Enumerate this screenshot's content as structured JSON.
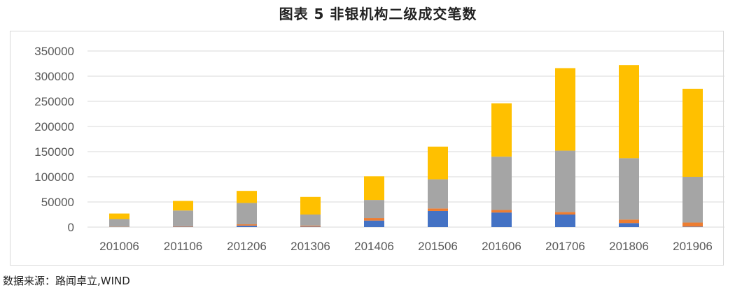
{
  "title": "图表 5 非银机构二级成交笔数",
  "source": "数据来源：路闻卓立,WIND",
  "chart_data": {
    "type": "bar",
    "stacked": true,
    "categories": [
      "201006",
      "201106",
      "201206",
      "201306",
      "201406",
      "201506",
      "201606",
      "201706",
      "201806",
      "201906"
    ],
    "series": [
      {
        "name": "",
        "color": "#4472c4",
        "values": [
          300,
          600,
          3000,
          1000,
          13000,
          32000,
          29000,
          25000,
          8000,
          1000
        ]
      },
      {
        "name": "",
        "color": "#ed7d31",
        "values": [
          500,
          1000,
          2500,
          2000,
          5000,
          5000,
          5000,
          5000,
          7000,
          8000
        ]
      },
      {
        "name": "",
        "color": "#a5a5a5",
        "values": [
          15200,
          31400,
          42500,
          22000,
          36000,
          58000,
          106000,
          122000,
          122000,
          91000
        ]
      },
      {
        "name": "",
        "color": "#ffc000",
        "values": [
          11000,
          19000,
          24000,
          35000,
          47000,
          65000,
          106000,
          164000,
          185000,
          175000
        ]
      }
    ],
    "ylim": [
      0,
      350000
    ],
    "yticks": [
      "0",
      "50000",
      "100000",
      "150000",
      "200000",
      "250000",
      "300000",
      "350000"
    ],
    "ytick_values": [
      0,
      50000,
      100000,
      150000,
      200000,
      250000,
      300000,
      350000
    ],
    "grid": true,
    "legend": "none",
    "xlabel": "",
    "ylabel": ""
  }
}
